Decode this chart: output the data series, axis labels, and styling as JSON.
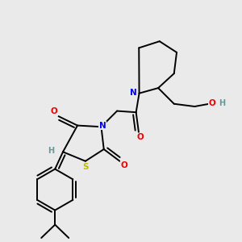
{
  "bg_color": "#eaeaea",
  "atom_colors": {
    "C": "#000000",
    "N": "#0000ee",
    "O": "#ee0000",
    "S": "#bbbb00",
    "H": "#669999"
  },
  "bond_color": "#000000",
  "bond_width": 1.4,
  "font_size_atom": 7.5
}
